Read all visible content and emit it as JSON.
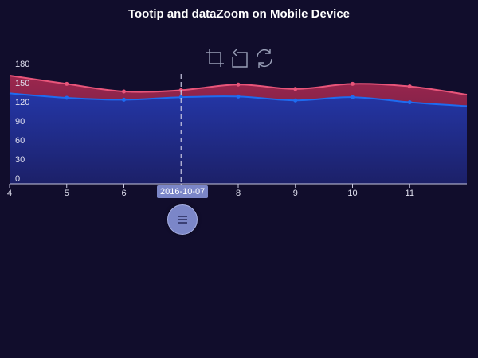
{
  "chart_data": {
    "type": "area",
    "title": "Tootip and dataZoom on Mobile Device",
    "x": [
      "4",
      "5",
      "6",
      "7",
      "8",
      "9",
      "10",
      "11",
      "12"
    ],
    "x_tick_labels": [
      "4",
      "5",
      "6",
      "7",
      "8",
      "9",
      "10",
      "11"
    ],
    "x_range": [
      4,
      12
    ],
    "ylim": [
      0,
      180
    ],
    "y_ticks": [
      0,
      30,
      60,
      90,
      120,
      150,
      180
    ],
    "series": [
      {
        "values": [
          170,
          157,
          145,
          147,
          156,
          149,
          157,
          153,
          140
        ],
        "color": "#e8557a"
      },
      {
        "values": [
          142,
          135,
          132,
          136,
          137,
          131,
          136,
          128,
          122
        ],
        "color": "#1e6bf0"
      }
    ],
    "pointer_label": "2016-10-07",
    "pointer_x": 7,
    "grid": false
  },
  "toolbox": {
    "icons": [
      "data-zoom-icon",
      "zoom-reset-icon",
      "restore-icon"
    ]
  },
  "colors": {
    "background": "#110d2c",
    "axis": "#c7c7e0"
  }
}
